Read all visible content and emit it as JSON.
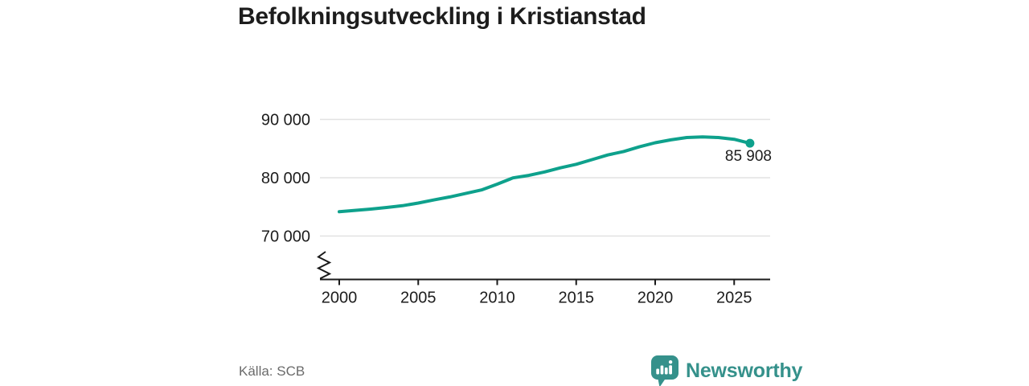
{
  "header": {
    "title": "Befolkningsutveckling i Kristianstad"
  },
  "footer": {
    "source_label": "Källa: SCB",
    "brand_name": "Newsworthy"
  },
  "colors": {
    "line": "#0ea18c",
    "brand": "#35918b",
    "axis": "#1a1a1a",
    "grid": "#e2e2e2",
    "text": "#1d1d1d",
    "muted": "#6b6b6b",
    "background": "#ffffff"
  },
  "chart_data": {
    "type": "line",
    "title": "Befolkningsutveckling i Kristianstad",
    "xlabel": "",
    "ylabel": "",
    "x": [
      2000,
      2001,
      2002,
      2003,
      2004,
      2005,
      2006,
      2007,
      2008,
      2009,
      2010,
      2011,
      2012,
      2013,
      2014,
      2015,
      2016,
      2017,
      2018,
      2019,
      2020,
      2021,
      2022,
      2023,
      2024,
      2025,
      2026
    ],
    "series": [
      {
        "name": "Befolkning",
        "values": [
          74160,
          74400,
          74620,
          74900,
          75200,
          75650,
          76200,
          76700,
          77300,
          77900,
          78900,
          79970,
          80400,
          81000,
          81700,
          82300,
          83100,
          83900,
          84500,
          85300,
          86000,
          86500,
          86900,
          87000,
          86900,
          86600,
          85908
        ]
      }
    ],
    "end_value": 85908,
    "end_label": "85 908",
    "y_ticks": [
      {
        "value": 90000,
        "label": "90 000"
      },
      {
        "value": 80000,
        "label": "80 000"
      },
      {
        "value": 70000,
        "label": "70 000"
      }
    ],
    "x_ticks": [
      {
        "value": 2000,
        "label": "2000"
      },
      {
        "value": 2005,
        "label": "2005"
      },
      {
        "value": 2010,
        "label": "2010"
      },
      {
        "value": 2015,
        "label": "2015"
      },
      {
        "value": 2020,
        "label": "2020"
      },
      {
        "value": 2025,
        "label": "2025"
      }
    ],
    "xlim": [
      1998.8,
      2027.3
    ],
    "y_axis_break": true,
    "grid": "horizontal",
    "legend": "none"
  }
}
